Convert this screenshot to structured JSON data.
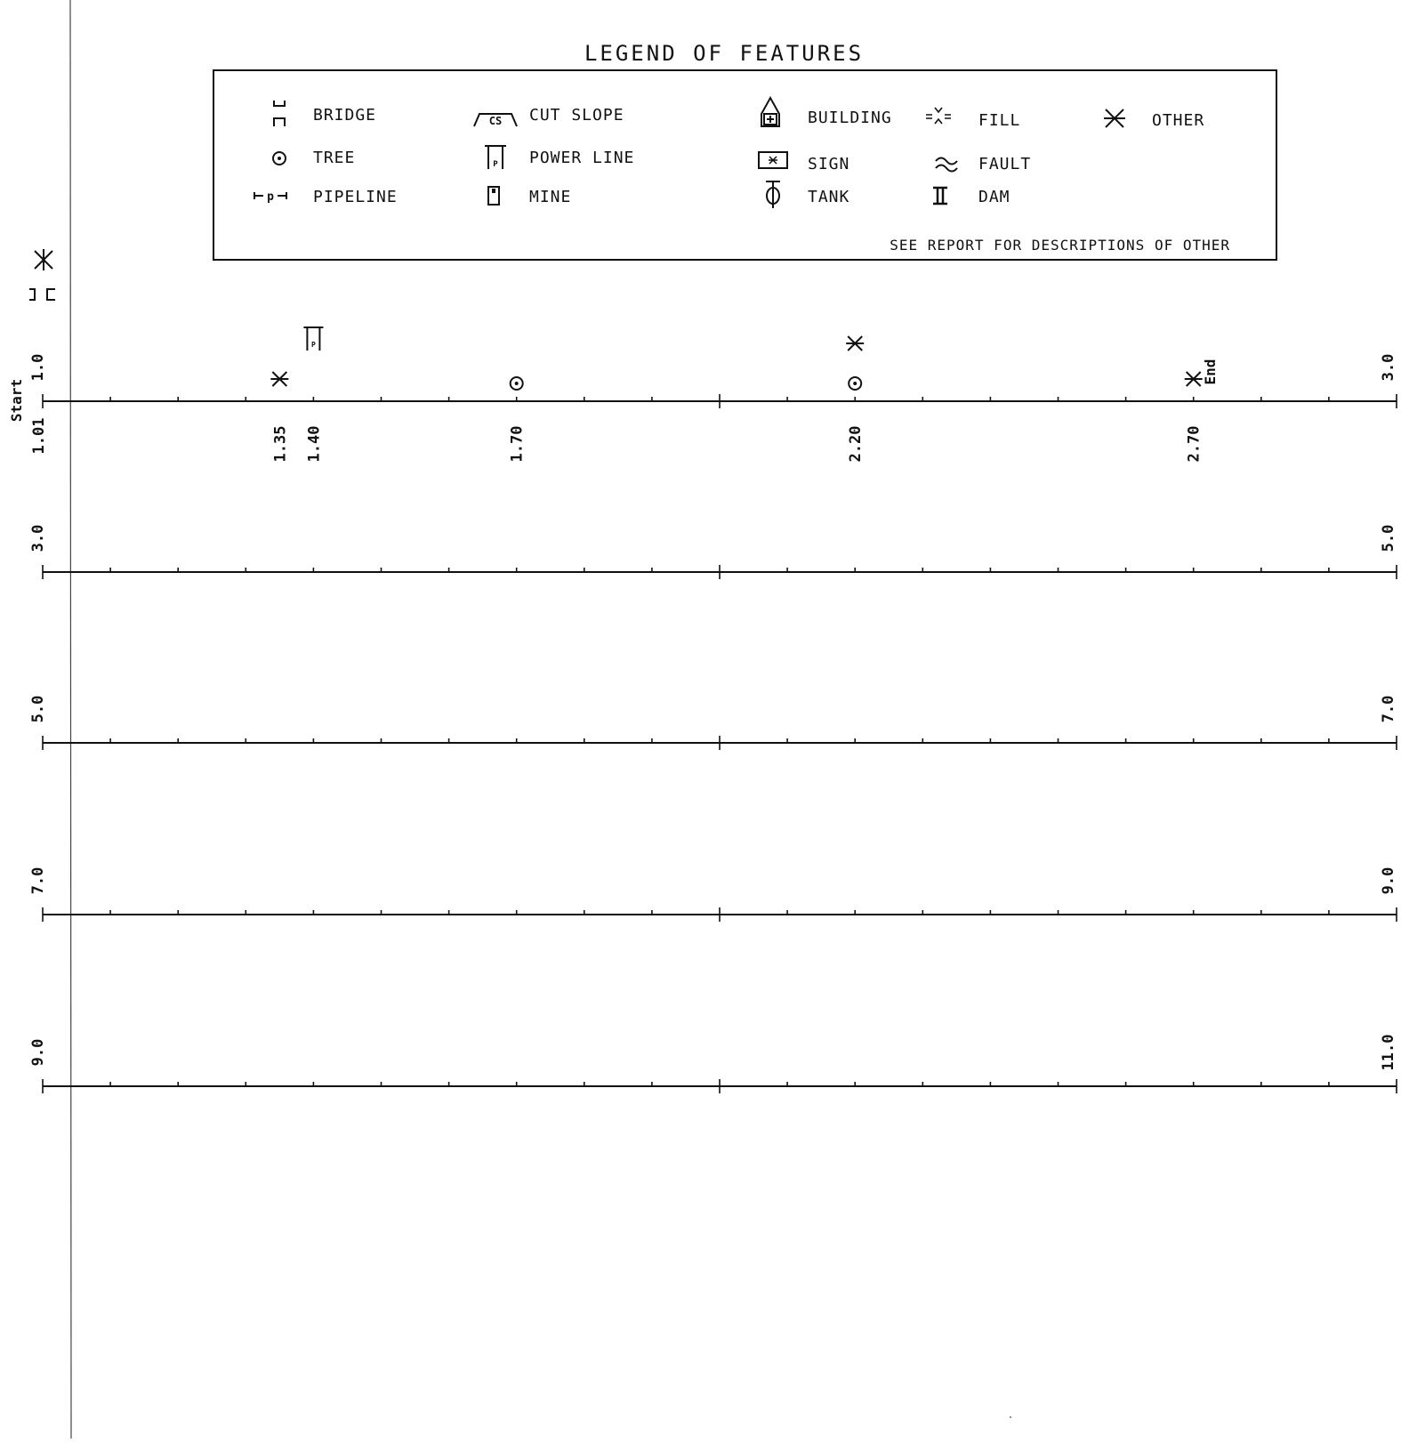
{
  "legend": {
    "title": "LEGEND OF FEATURES",
    "items": [
      {
        "icon": "bridge-icon",
        "label": "BRIDGE"
      },
      {
        "icon": "cut-slope-icon",
        "label": "CUT SLOPE",
        "icon_text": "CS"
      },
      {
        "icon": "building-icon",
        "label": "BUILDING"
      },
      {
        "icon": "fill-icon",
        "label": "FILL"
      },
      {
        "icon": "other-icon",
        "label": "OTHER"
      },
      {
        "icon": "tree-icon",
        "label": "TREE"
      },
      {
        "icon": "power-line-icon",
        "label": "POWER LINE",
        "icon_text": "P"
      },
      {
        "icon": "sign-icon",
        "label": "SIGN"
      },
      {
        "icon": "fault-icon",
        "label": "FAULT"
      },
      {
        "icon": "pipeline-icon",
        "label": "PIPELINE",
        "icon_text": "p"
      },
      {
        "icon": "mine-icon",
        "label": "MINE"
      },
      {
        "icon": "tank-icon",
        "label": "TANK"
      },
      {
        "icon": "dam-icon",
        "label": "DAM"
      }
    ],
    "note": "SEE REPORT FOR DESCRIPTIONS OF OTHER"
  },
  "strips": [
    {
      "start": "1.01",
      "start_label": "1.0",
      "end_label": "3.0"
    },
    {
      "start_label": "3.0",
      "end_label": "5.0"
    },
    {
      "start_label": "5.0",
      "end_label": "7.0"
    },
    {
      "start_label": "7.0",
      "end_label": "9.0"
    },
    {
      "start_label": "9.0",
      "end_label": "11.0"
    }
  ],
  "labels": {
    "start": "Start",
    "end": "End"
  },
  "side_icons": [
    "bridge-icon",
    "other-icon"
  ],
  "features": [
    {
      "position": "1.35",
      "type": "other"
    },
    {
      "position": "1.40",
      "type": "power-line"
    },
    {
      "position": "1.70",
      "type": "tree"
    },
    {
      "position": "2.20",
      "type": "tree"
    },
    {
      "position": "2.20",
      "type": "other",
      "stacked": true
    },
    {
      "position": "2.70",
      "type": "other"
    }
  ],
  "end_position": "2.74"
}
